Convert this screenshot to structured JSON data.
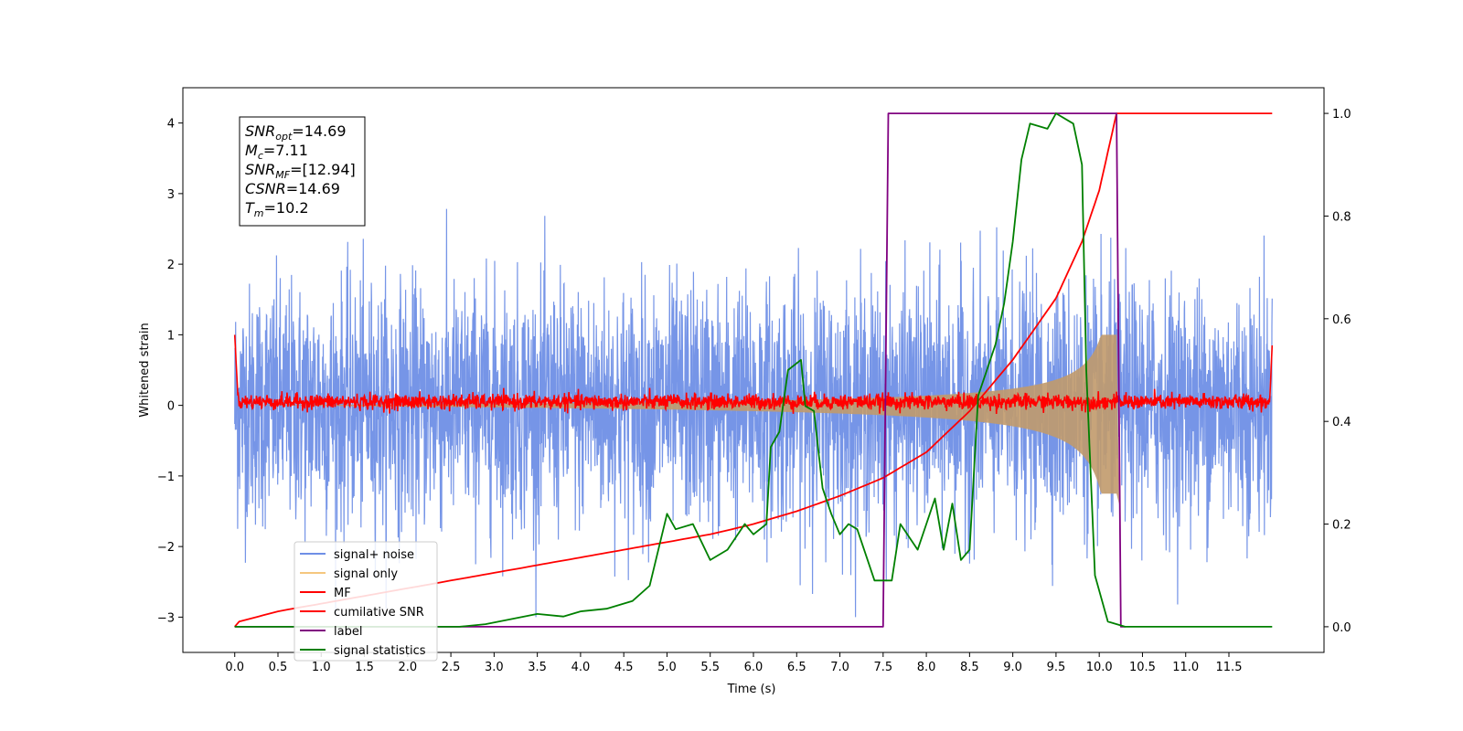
{
  "chart_data": {
    "type": "line",
    "xlabel": "Time (s)",
    "ylabel": "Whitened strain",
    "xlim": [
      -0.6,
      12.6
    ],
    "ylim": [
      -3.5,
      4.5
    ],
    "y2lim": [
      -0.05,
      1.05
    ],
    "xticks": [
      "0.0",
      "0.5",
      "1.0",
      "1.5",
      "2.0",
      "2.5",
      "3.0",
      "3.5",
      "4.0",
      "4.5",
      "5.0",
      "5.5",
      "6.0",
      "6.5",
      "7.0",
      "7.5",
      "8.0",
      "8.5",
      "9.0",
      "9.5",
      "10.0",
      "10.5",
      "11.0",
      "11.5"
    ],
    "yticks": [
      "−3",
      "−2",
      "−1",
      "0",
      "1",
      "2",
      "3",
      "4"
    ],
    "y2ticks": [
      "0.0",
      "0.2",
      "0.4",
      "0.6",
      "0.8",
      "1.0"
    ],
    "grid": false,
    "annotation": {
      "lines": [
        {
          "base": "SNR",
          "sub": "opt",
          "value": "=14.69"
        },
        {
          "base": "M",
          "sub": "c",
          "value": "=7.11"
        },
        {
          "base": "SNR",
          "sub": "MF",
          "value": "=[12.94]"
        },
        {
          "base": "CSNR",
          "sub": "",
          "value": "=14.69"
        },
        {
          "base": "T",
          "sub": "m",
          "value": "=10.2"
        }
      ]
    },
    "legend": {
      "placement": "lower-left",
      "entries": [
        {
          "label": "signal+ noise",
          "color": "#6f8fe6"
        },
        {
          "label": "signal only",
          "color": "#f5c77e"
        },
        {
          "label": "MF",
          "color": "#ff0000"
        },
        {
          "label": "cumilative SNR",
          "color": "#ff0000"
        },
        {
          "label": "label",
          "color": "#800080"
        },
        {
          "label": "signal statistics",
          "color": "#008000"
        }
      ]
    },
    "series": [
      {
        "name": "signal+ noise",
        "axis": "left",
        "kind": "noise",
        "color": "#6f8fe6",
        "x_range": [
          0.0,
          12.0
        ],
        "amplitude_typical": [
          -1.8,
          1.9
        ],
        "amplitude_peak": [
          -3.0,
          3.2
        ]
      },
      {
        "name": "signal only",
        "axis": "left",
        "kind": "chirp",
        "color": "#c19a6b",
        "x_range": [
          0.0,
          10.24
        ],
        "merger_time": 10.2,
        "peak_amplitude": 1.0
      },
      {
        "name": "MF",
        "axis": "left",
        "kind": "noise",
        "color": "#ff0000",
        "x_range": [
          0.0,
          12.0
        ],
        "amplitude_typical": [
          -0.1,
          0.2
        ]
      },
      {
        "name": "cumilative SNR",
        "axis": "right",
        "color": "#ff0000",
        "points": [
          [
            0.0,
            0.0
          ],
          [
            0.05,
            0.01
          ],
          [
            0.5,
            0.03
          ],
          [
            1.0,
            0.045
          ],
          [
            1.5,
            0.06
          ],
          [
            2.0,
            0.075
          ],
          [
            2.5,
            0.09
          ],
          [
            3.0,
            0.105
          ],
          [
            3.5,
            0.12
          ],
          [
            4.0,
            0.135
          ],
          [
            4.5,
            0.15
          ],
          [
            5.0,
            0.165
          ],
          [
            5.5,
            0.18
          ],
          [
            6.0,
            0.2
          ],
          [
            6.5,
            0.225
          ],
          [
            7.0,
            0.255
          ],
          [
            7.5,
            0.29
          ],
          [
            8.0,
            0.34
          ],
          [
            8.5,
            0.42
          ],
          [
            9.0,
            0.52
          ],
          [
            9.5,
            0.64
          ],
          [
            9.8,
            0.75
          ],
          [
            10.0,
            0.85
          ],
          [
            10.2,
            1.0
          ],
          [
            12.0,
            1.0
          ]
        ]
      },
      {
        "name": "label",
        "axis": "right",
        "color": "#800080",
        "points": [
          [
            0.0,
            0.0
          ],
          [
            7.5,
            0.0
          ],
          [
            7.56,
            1.0
          ],
          [
            10.2,
            1.0
          ],
          [
            10.25,
            0.0
          ],
          [
            10.3,
            0.0
          ]
        ]
      },
      {
        "name": "signal statistics",
        "axis": "right",
        "color": "#008000",
        "points": [
          [
            0.0,
            0.0
          ],
          [
            1.0,
            0.0
          ],
          [
            2.0,
            0.0
          ],
          [
            2.6,
            0.0
          ],
          [
            2.9,
            0.005
          ],
          [
            3.2,
            0.015
          ],
          [
            3.5,
            0.025
          ],
          [
            3.8,
            0.02
          ],
          [
            4.0,
            0.03
          ],
          [
            4.3,
            0.035
          ],
          [
            4.6,
            0.05
          ],
          [
            4.8,
            0.08
          ],
          [
            5.0,
            0.22
          ],
          [
            5.1,
            0.19
          ],
          [
            5.3,
            0.2
          ],
          [
            5.5,
            0.13
          ],
          [
            5.7,
            0.15
          ],
          [
            5.9,
            0.2
          ],
          [
            6.0,
            0.18
          ],
          [
            6.15,
            0.2
          ],
          [
            6.2,
            0.35
          ],
          [
            6.3,
            0.38
          ],
          [
            6.4,
            0.5
          ],
          [
            6.55,
            0.52
          ],
          [
            6.6,
            0.43
          ],
          [
            6.7,
            0.42
          ],
          [
            6.8,
            0.27
          ],
          [
            6.9,
            0.22
          ],
          [
            7.0,
            0.18
          ],
          [
            7.1,
            0.2
          ],
          [
            7.2,
            0.19
          ],
          [
            7.4,
            0.09
          ],
          [
            7.6,
            0.09
          ],
          [
            7.7,
            0.2
          ],
          [
            7.9,
            0.15
          ],
          [
            8.0,
            0.2
          ],
          [
            8.1,
            0.25
          ],
          [
            8.2,
            0.15
          ],
          [
            8.3,
            0.24
          ],
          [
            8.4,
            0.13
          ],
          [
            8.5,
            0.15
          ],
          [
            8.6,
            0.45
          ],
          [
            8.7,
            0.5
          ],
          [
            8.8,
            0.55
          ],
          [
            8.9,
            0.63
          ],
          [
            9.0,
            0.75
          ],
          [
            9.1,
            0.91
          ],
          [
            9.2,
            0.98
          ],
          [
            9.4,
            0.97
          ],
          [
            9.5,
            1.0
          ],
          [
            9.7,
            0.98
          ],
          [
            9.8,
            0.9
          ],
          [
            9.85,
            0.5
          ],
          [
            9.95,
            0.1
          ],
          [
            10.1,
            0.01
          ],
          [
            10.3,
            0.0
          ],
          [
            12.0,
            0.0
          ]
        ]
      }
    ]
  }
}
